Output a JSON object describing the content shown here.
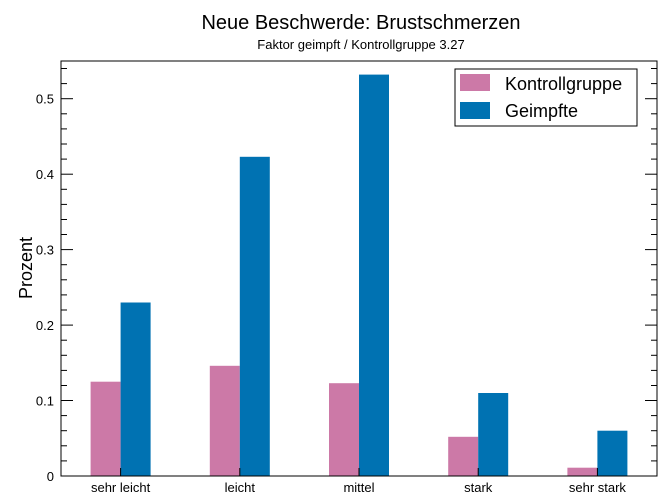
{
  "chart_data": {
    "type": "bar",
    "title": "Neue Beschwerde: Brustschmerzen",
    "subtitle": "Faktor geimpft / Kontrollgruppe 3.27",
    "xlabel": "",
    "ylabel": "Prozent",
    "categories": [
      "sehr leicht",
      "leicht",
      "mittel",
      "stark",
      "sehr stark"
    ],
    "series": [
      {
        "name": "Kontrollgruppe",
        "color": "#cc79a7",
        "values": [
          0.125,
          0.146,
          0.123,
          0.052,
          0.011
        ]
      },
      {
        "name": "Geimpfte",
        "color": "#0072b2",
        "values": [
          0.23,
          0.423,
          0.532,
          0.11,
          0.06
        ]
      }
    ],
    "ylim": [
      0,
      0.55
    ],
    "yticks": [
      "0",
      "0.1",
      "0.2",
      "0.3",
      "0.4",
      "0.5"
    ],
    "grid": false,
    "legend_position": "top-right"
  }
}
